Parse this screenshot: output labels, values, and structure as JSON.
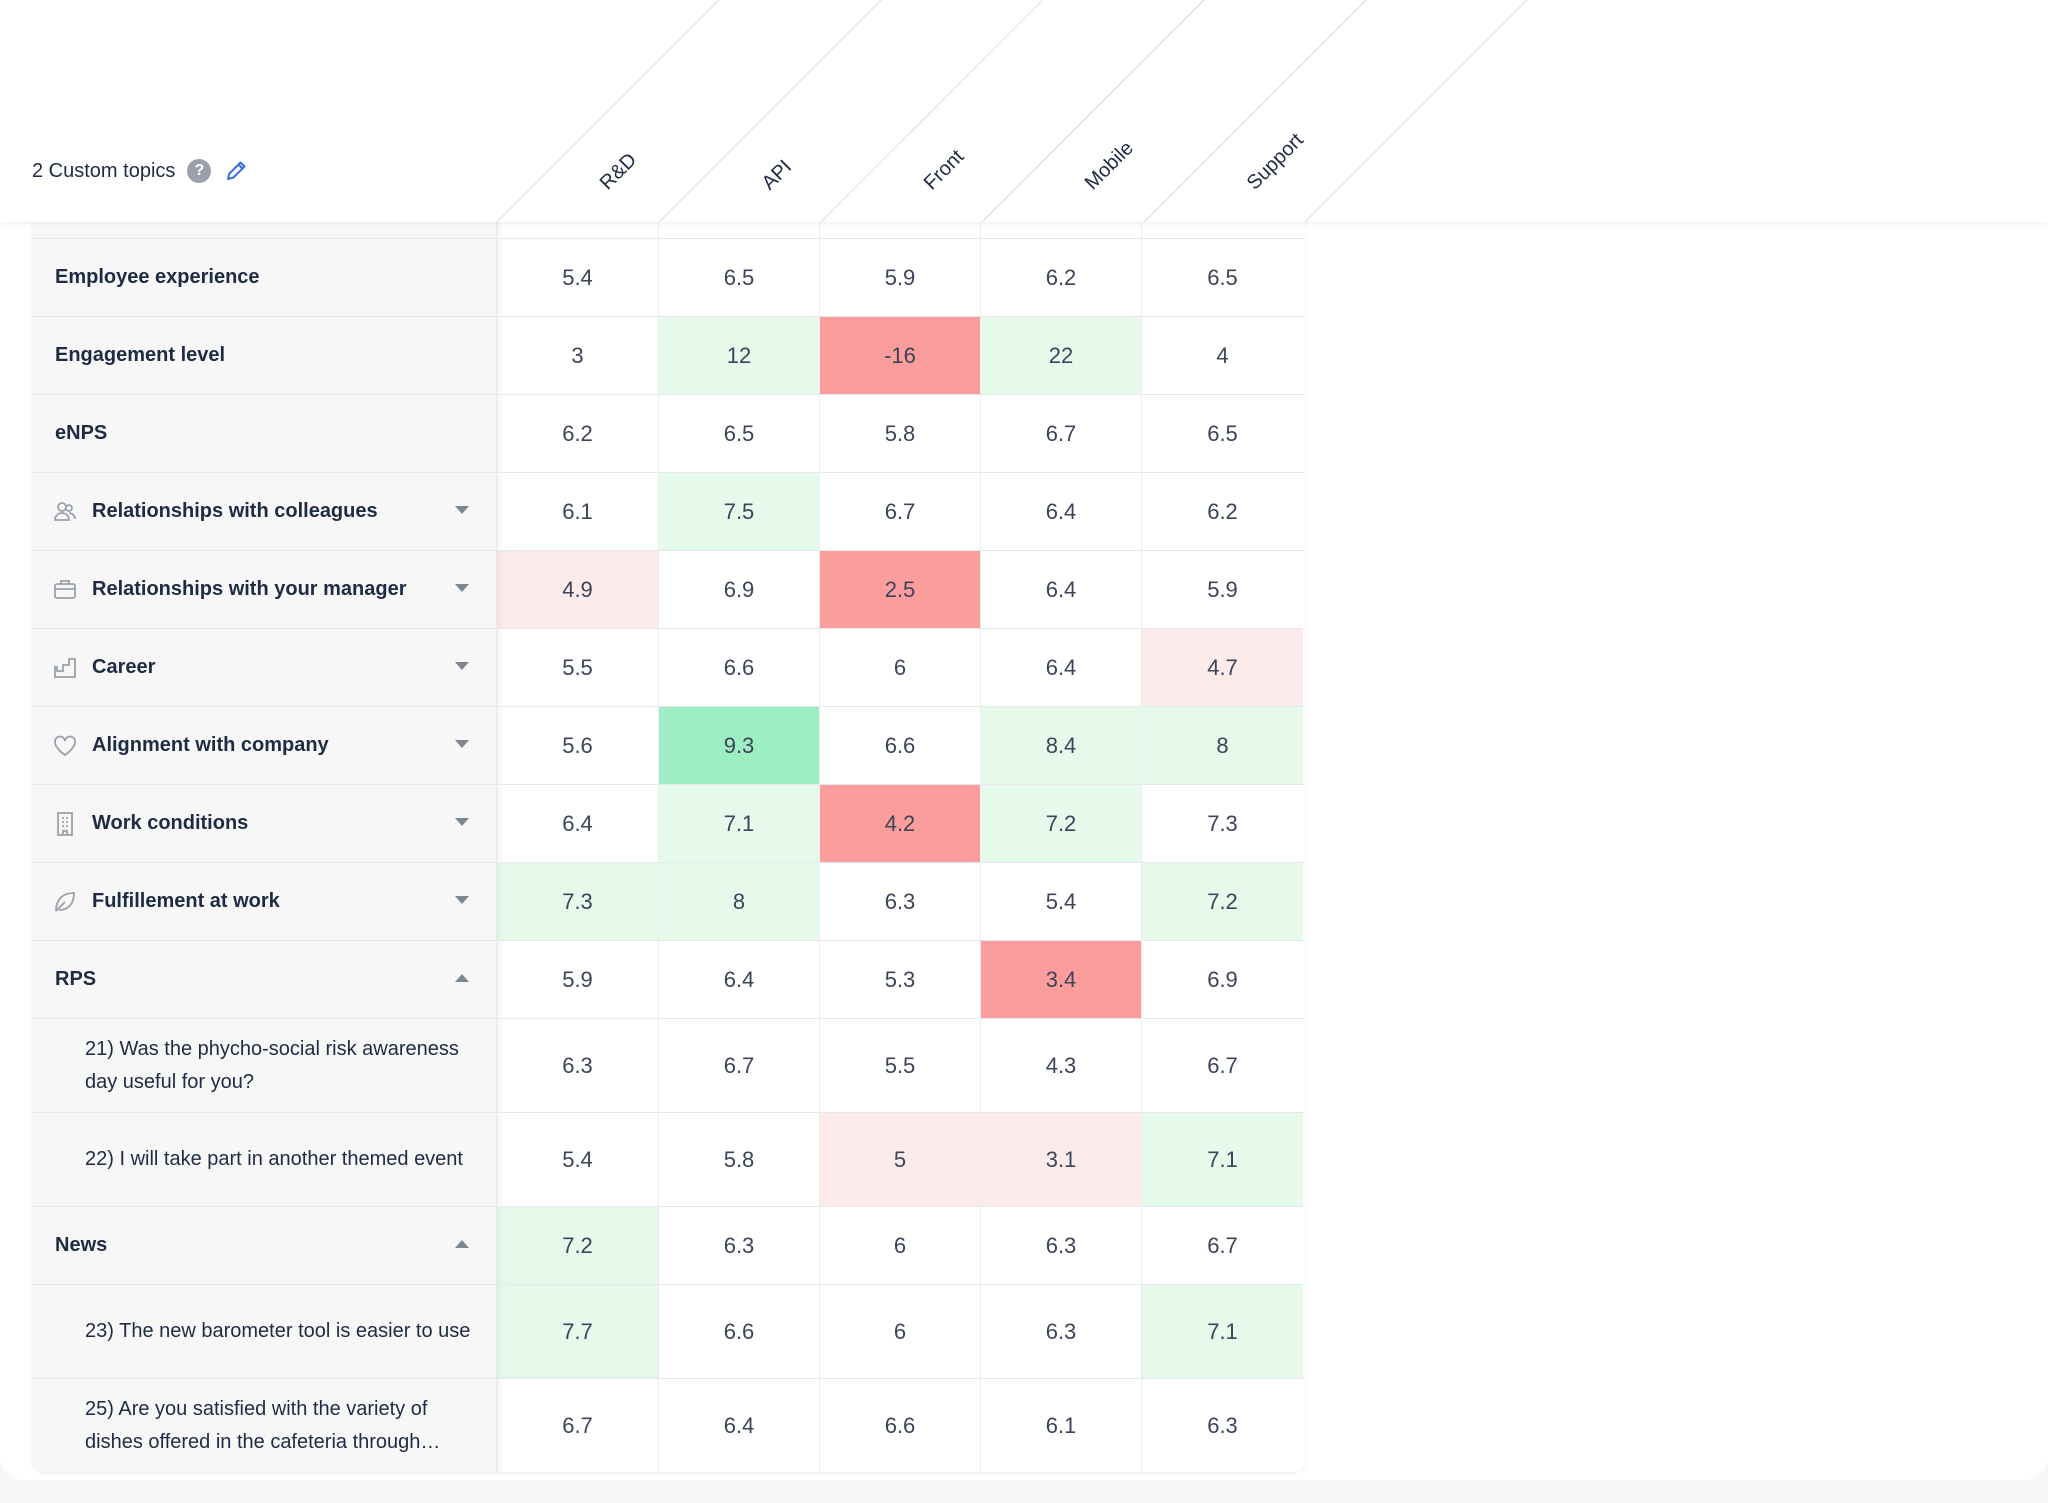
{
  "header": {
    "topics_label": "2 Custom topics",
    "help_glyph": "?",
    "help_icon": "question-circle-icon",
    "edit_icon": "pencil-icon"
  },
  "columns": [
    "R&D",
    "API",
    "Front",
    "Mobile",
    "Support"
  ],
  "colors": {
    "light_green": "#e6faec",
    "strong_green": "#9deec3",
    "light_red": "#fdebeb",
    "strong_red": "#fc9d9d",
    "label_bg": "#f7f7f8",
    "text": "#1f2a44",
    "accent_blue": "#3a6fd8"
  },
  "rows": [
    {
      "label": "Employee experience",
      "kind": "metric",
      "values": [
        "5.4",
        "6.5",
        "5.9",
        "6.2",
        "6.5"
      ],
      "shade": [
        "",
        "",
        "",
        "",
        ""
      ]
    },
    {
      "label": "Engagement level",
      "kind": "metric",
      "values": [
        "3",
        "12",
        "-16",
        "22",
        "4"
      ],
      "shade": [
        "",
        "g1",
        "r2",
        "g1",
        ""
      ]
    },
    {
      "label": "eNPS",
      "kind": "metric",
      "values": [
        "6.2",
        "6.5",
        "5.8",
        "6.7",
        "6.5"
      ],
      "shade": [
        "",
        "",
        "",
        "",
        ""
      ]
    },
    {
      "label": "Relationships with colleagues",
      "kind": "topic",
      "icon": "people-icon",
      "expanded": false,
      "values": [
        "6.1",
        "7.5",
        "6.7",
        "6.4",
        "6.2"
      ],
      "shade": [
        "",
        "g1",
        "",
        "",
        ""
      ]
    },
    {
      "label": "Relationships with your manager",
      "kind": "topic",
      "icon": "briefcase-icon",
      "expanded": false,
      "values": [
        "4.9",
        "6.9",
        "2.5",
        "6.4",
        "5.9"
      ],
      "shade": [
        "r1",
        "",
        "r2",
        "",
        ""
      ]
    },
    {
      "label": "Career",
      "kind": "topic",
      "icon": "stairs-icon",
      "expanded": false,
      "values": [
        "5.5",
        "6.6",
        "6",
        "6.4",
        "4.7"
      ],
      "shade": [
        "",
        "",
        "",
        "",
        "r1"
      ]
    },
    {
      "label": "Alignment with company",
      "kind": "topic",
      "icon": "heart-icon",
      "expanded": false,
      "values": [
        "5.6",
        "9.3",
        "6.6",
        "8.4",
        "8"
      ],
      "shade": [
        "",
        "g2",
        "",
        "g1",
        "g1"
      ]
    },
    {
      "label": "Work conditions",
      "kind": "topic",
      "icon": "building-icon",
      "expanded": false,
      "values": [
        "6.4",
        "7.1",
        "4.2",
        "7.2",
        "7.3"
      ],
      "shade": [
        "",
        "g1",
        "r2",
        "g1",
        ""
      ]
    },
    {
      "label": "Fulfillement at work",
      "kind": "topic",
      "icon": "leaf-icon",
      "expanded": false,
      "values": [
        "7.3",
        "8",
        "6.3",
        "5.4",
        "7.2"
      ],
      "shade": [
        "g1",
        "g1",
        "",
        "",
        "g1"
      ]
    },
    {
      "label": "RPS",
      "kind": "custom",
      "expanded": true,
      "values": [
        "5.9",
        "6.4",
        "5.3",
        "3.4",
        "6.9"
      ],
      "shade": [
        "",
        "",
        "",
        "r2",
        ""
      ]
    },
    {
      "label": "21) Was the phycho-social risk awareness day useful for you?",
      "kind": "question",
      "values": [
        "6.3",
        "6.7",
        "5.5",
        "4.3",
        "6.7"
      ],
      "shade": [
        "",
        "",
        "",
        "",
        ""
      ]
    },
    {
      "label": "22) I will take part in another themed event",
      "kind": "question",
      "values": [
        "5.4",
        "5.8",
        "5",
        "3.1",
        "7.1"
      ],
      "shade": [
        "",
        "",
        "r1",
        "r1",
        "g1"
      ]
    },
    {
      "label": "News",
      "kind": "custom",
      "expanded": true,
      "values": [
        "7.2",
        "6.3",
        "6",
        "6.3",
        "6.7"
      ],
      "shade": [
        "g1",
        "",
        "",
        "",
        ""
      ]
    },
    {
      "label": "23) The new barometer tool is easier to use",
      "kind": "question",
      "values": [
        "7.7",
        "6.6",
        "6",
        "6.3",
        "7.1"
      ],
      "shade": [
        "g1",
        "",
        "",
        "",
        "g1"
      ]
    },
    {
      "label": "25) Are you satisfied with the variety of dishes offered in the cafeteria through…",
      "kind": "question",
      "values": [
        "6.7",
        "6.4",
        "6.6",
        "6.1",
        "6.3"
      ],
      "shade": [
        "",
        "",
        "",
        "",
        ""
      ]
    }
  ]
}
